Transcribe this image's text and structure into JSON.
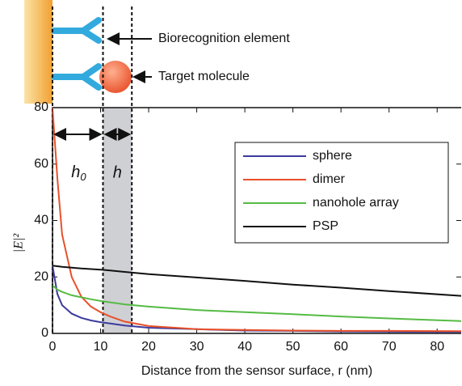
{
  "chart_data": {
    "type": "line",
    "schematic_labels": [
      "Biorecognition element",
      "Target molecule"
    ],
    "annotations": {
      "h0": "h",
      "h0_sub": "0",
      "h": "h"
    },
    "ylabel": "|E|²",
    "xlabel": "Distance from the sensor surface, r (nm)",
    "x": [
      0,
      1,
      2,
      4,
      6,
      8,
      10,
      12,
      15,
      20,
      30,
      40,
      50,
      60,
      70,
      85
    ],
    "series": [
      {
        "name": "sphere",
        "color": "#3b3b9e",
        "values": [
          24,
          14,
          10,
          7,
          5.5,
          4.6,
          4,
          3.5,
          2.8,
          2,
          1.5,
          1,
          0.9,
          0.7,
          0.6,
          0.5
        ]
      },
      {
        "name": "dimer",
        "color": "#e8502a",
        "values": [
          80,
          55,
          35,
          20,
          13,
          9.5,
          7.5,
          6,
          4.2,
          2.6,
          1.5,
          1.2,
          1,
          0.9,
          0.9,
          0.8
        ]
      },
      {
        "name": "nanohole array",
        "color": "#55bb44",
        "values": [
          17,
          15.5,
          14.7,
          13.5,
          12.8,
          12.1,
          11.5,
          11,
          10.3,
          9.5,
          8.3,
          7.5,
          6.8,
          6,
          5.3,
          4.4
        ]
      },
      {
        "name": "PSP",
        "color": "#111111",
        "values": [
          24,
          23.8,
          23.6,
          23.3,
          23,
          22.8,
          22.6,
          22.3,
          21.8,
          21,
          19.8,
          18.6,
          17.3,
          16.2,
          15,
          13.3
        ]
      }
    ],
    "shaded_x": [
      10.5,
      16.5
    ],
    "xlim": [
      0,
      85
    ],
    "ylim": [
      0,
      80
    ],
    "xticks": [
      0,
      10,
      20,
      30,
      40,
      50,
      60,
      70,
      80
    ],
    "yticks": [
      0,
      20,
      40,
      60,
      80
    ],
    "legend": "top-right"
  }
}
